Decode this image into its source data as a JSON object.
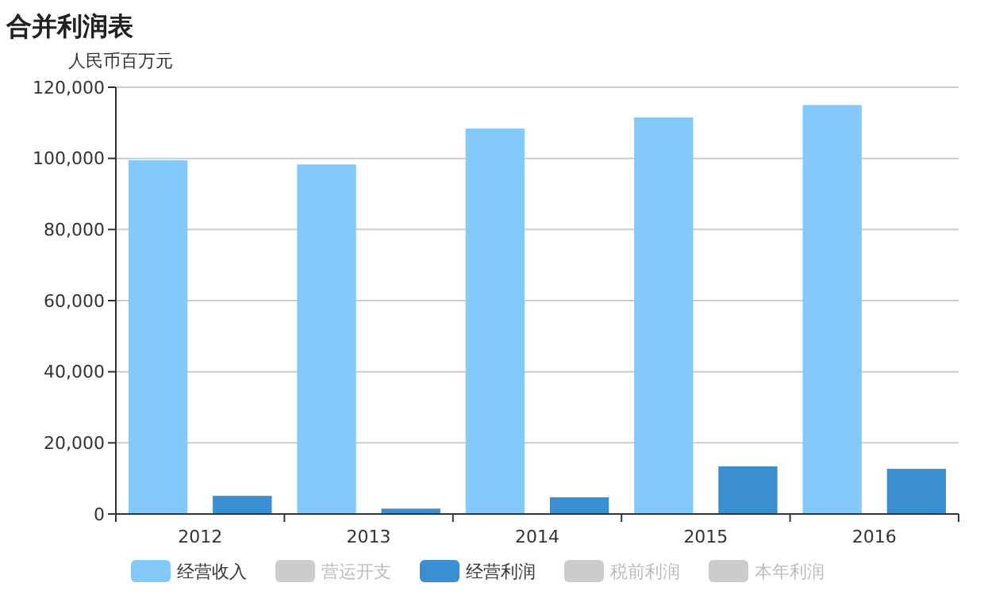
{
  "chart_data": {
    "type": "bar",
    "title": "合并利润表",
    "ylabel": "人民币百万元",
    "categories": [
      "2012",
      "2013",
      "2014",
      "2015",
      "2016"
    ],
    "series": [
      {
        "name": "经营收入",
        "color": "#83c9fb",
        "values": [
          99500,
          98300,
          108400,
          111500,
          115000
        ]
      },
      {
        "name": "营运开支",
        "color": "#cccccc",
        "values": [
          null,
          null,
          null,
          null,
          null
        ]
      },
      {
        "name": "经营利润",
        "color": "#3a8fd0",
        "values": [
          5100,
          1500,
          4700,
          13400,
          12700
        ]
      },
      {
        "name": "税前利润",
        "color": "#cccccc",
        "values": [
          null,
          null,
          null,
          null,
          null
        ]
      },
      {
        "name": "本年利润",
        "color": "#cccccc",
        "values": [
          null,
          null,
          null,
          null,
          null
        ]
      }
    ],
    "ylim": [
      0,
      120000
    ],
    "yticks": [
      0,
      {
        "value": 20000,
        "label": "20,000"
      },
      {
        "value": 40000,
        "label": "40,000"
      },
      {
        "value": 60000,
        "label": "60,000"
      },
      {
        "value": 80000,
        "label": "80,000"
      },
      {
        "value": 100000,
        "label": "100,000"
      },
      {
        "value": 120000,
        "label": "120,000"
      }
    ],
    "grid": "y",
    "legend": "bottom"
  }
}
